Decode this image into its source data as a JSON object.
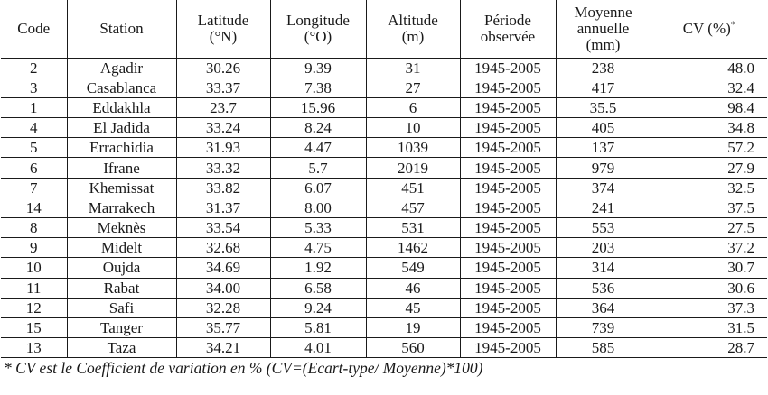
{
  "headers": [
    {
      "line1": "Code",
      "line2": "",
      "line3": ""
    },
    {
      "line1": "Station",
      "line2": "",
      "line3": ""
    },
    {
      "line1": "Latitude",
      "line2": "(°N)",
      "line3": ""
    },
    {
      "line1": "Longitude",
      "line2": "(°O)",
      "line3": ""
    },
    {
      "line1": "Altitude",
      "line2": "(m)",
      "line3": ""
    },
    {
      "line1": "Période",
      "line2": "observée",
      "line3": ""
    },
    {
      "line1": "Moyenne",
      "line2": "annuelle",
      "line3": "(mm)"
    },
    {
      "line1": "CV (%)",
      "line2": "",
      "line3": "",
      "sup": "*"
    }
  ],
  "rows": [
    {
      "code": "2",
      "station": "Agadir",
      "lat": "30.26",
      "lon": "9.39",
      "alt": "31",
      "period": "1945-2005",
      "mean": "238",
      "cv": "48.0"
    },
    {
      "code": "3",
      "station": "Casablanca",
      "lat": "33.37",
      "lon": "7.38",
      "alt": "27",
      "period": "1945-2005",
      "mean": "417",
      "cv": "32.4"
    },
    {
      "code": "1",
      "station": "Eddakhla",
      "lat": "23.7",
      "lon": "15.96",
      "alt": "6",
      "period": "1945-2005",
      "mean": "35.5",
      "cv": "98.4"
    },
    {
      "code": "4",
      "station": "El Jadida",
      "lat": "33.24",
      "lon": "8.24",
      "alt": "10",
      "period": "1945-2005",
      "mean": "405",
      "cv": "34.8"
    },
    {
      "code": "5",
      "station": "Errachidia",
      "lat": "31.93",
      "lon": "4.47",
      "alt": "1039",
      "period": "1945-2005",
      "mean": "137",
      "cv": "57.2"
    },
    {
      "code": "6",
      "station": "Ifrane",
      "lat": "33.32",
      "lon": "5.7",
      "alt": "2019",
      "period": "1945-2005",
      "mean": "979",
      "cv": "27.9"
    },
    {
      "code": "7",
      "station": "Khemissat",
      "lat": "33.82",
      "lon": "6.07",
      "alt": "451",
      "period": "1945-2005",
      "mean": "374",
      "cv": "32.5"
    },
    {
      "code": "14",
      "station": "Marrakech",
      "lat": "31.37",
      "lon": "8.00",
      "alt": "457",
      "period": "1945-2005",
      "mean": "241",
      "cv": "37.5"
    },
    {
      "code": "8",
      "station": "Meknès",
      "lat": "33.54",
      "lon": "5.33",
      "alt": "531",
      "period": "1945-2005",
      "mean": "553",
      "cv": "27.5"
    },
    {
      "code": "9",
      "station": "Midelt",
      "lat": "32.68",
      "lon": "4.75",
      "alt": "1462",
      "period": "1945-2005",
      "mean": "203",
      "cv": "37.2"
    },
    {
      "code": "10",
      "station": "Oujda",
      "lat": "34.69",
      "lon": "1.92",
      "alt": "549",
      "period": "1945-2005",
      "mean": "314",
      "cv": "30.7"
    },
    {
      "code": "11",
      "station": "Rabat",
      "lat": "34.00",
      "lon": "6.58",
      "alt": "46",
      "period": "1945-2005",
      "mean": "536",
      "cv": "30.6"
    },
    {
      "code": "12",
      "station": "Safi",
      "lat": "32.28",
      "lon": "9.24",
      "alt": "45",
      "period": "1945-2005",
      "mean": "364",
      "cv": "37.3"
    },
    {
      "code": "15",
      "station": "Tanger",
      "lat": "35.77",
      "lon": "5.81",
      "alt": "19",
      "period": "1945-2005",
      "mean": "739",
      "cv": "31.5"
    },
    {
      "code": "13",
      "station": "Taza",
      "lat": "34.21",
      "lon": "4.01",
      "alt": "560",
      "period": "1945-2005",
      "mean": "585",
      "cv": "28.7"
    }
  ],
  "footnote": "* CV est le Coefficient de variation en % (CV=(Ecart-type/ Moyenne)*100)"
}
